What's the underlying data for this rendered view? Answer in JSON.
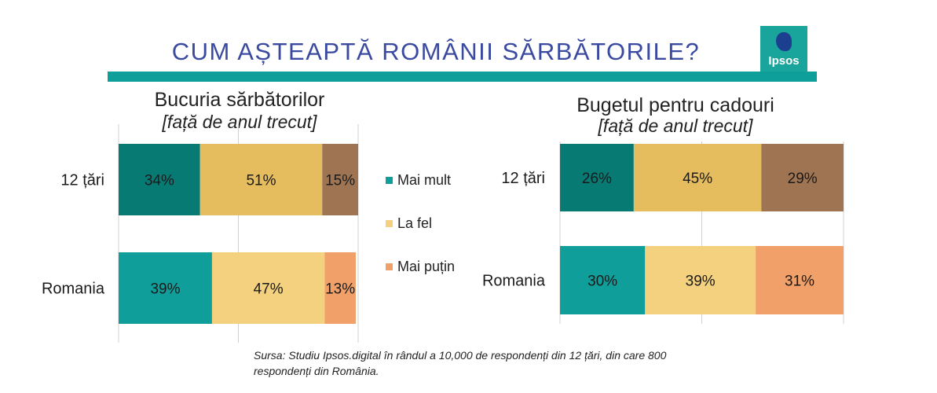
{
  "page_title": "CUM AȘTEAPTĂ ROMÂNII SĂRBĂTORILE?",
  "logo_text": "Ipsos",
  "legend": [
    {
      "label": "Mai mult",
      "color": "#109e9b"
    },
    {
      "label": "La fel",
      "color": "#f3d17e"
    },
    {
      "label": "Mai puțin",
      "color": "#f0a068"
    }
  ],
  "source": "Sursa:  Studiu Ipsos.digital în rândul a 10,000 de respondenți din 12 țări, din care 800 respondenți din România.",
  "chart_data": [
    {
      "type": "bar",
      "orientation": "horizontal",
      "stacked": true,
      "title": "Bucuria sărbătorilor",
      "subtitle": "[față de anul trecut]",
      "categories": [
        "12 țări",
        "Romania"
      ],
      "series": [
        {
          "name": "Mai mult",
          "values": [
            34,
            39
          ],
          "colors": [
            "#087a74",
            "#109e9b"
          ]
        },
        {
          "name": "La fel",
          "values": [
            51,
            47
          ],
          "colors": [
            "#e6bd5e",
            "#f3d17e"
          ]
        },
        {
          "name": "Mai puțin",
          "values": [
            15,
            13
          ],
          "colors": [
            "#9e7452",
            "#f0a068"
          ]
        }
      ],
      "data_labels": [
        [
          "34%",
          "51%",
          "15%"
        ],
        [
          "39%",
          "47%",
          "13%"
        ]
      ],
      "xlim": [
        0,
        100
      ],
      "grid": true
    },
    {
      "type": "bar",
      "orientation": "horizontal",
      "stacked": true,
      "title": "Bugetul pentru cadouri",
      "subtitle": "[față de anul trecut]",
      "categories": [
        "12 țări",
        "Romania"
      ],
      "series": [
        {
          "name": "Mai mult",
          "values": [
            26,
            30
          ],
          "colors": [
            "#087a74",
            "#109e9b"
          ]
        },
        {
          "name": "La fel",
          "values": [
            45,
            39
          ],
          "colors": [
            "#e6bd5e",
            "#f3d17e"
          ]
        },
        {
          "name": "Mai puțin",
          "values": [
            29,
            31
          ],
          "colors": [
            "#9e7452",
            "#f0a068"
          ]
        }
      ],
      "data_labels": [
        [
          "26%",
          "45%",
          "29%"
        ],
        [
          "30%",
          "39%",
          "31%"
        ]
      ],
      "xlim": [
        0,
        100
      ],
      "grid": true
    }
  ]
}
